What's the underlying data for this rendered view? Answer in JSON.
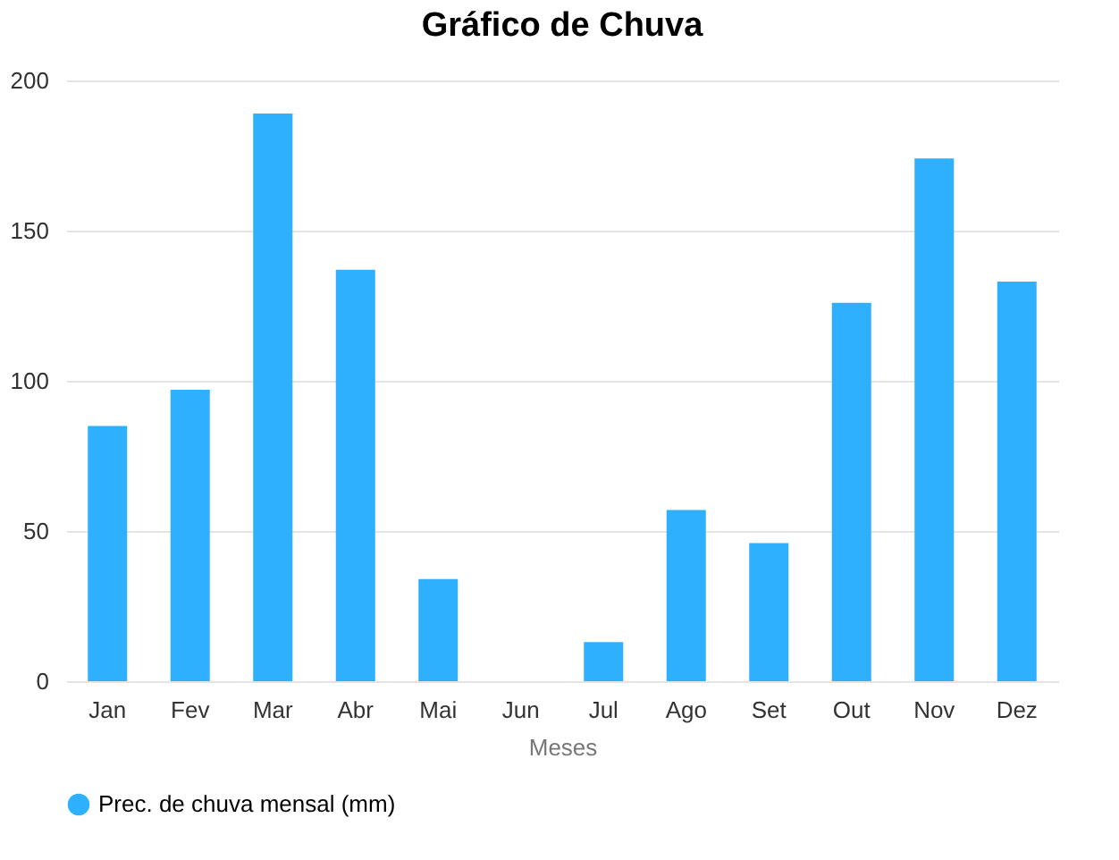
{
  "chart_data": {
    "type": "bar",
    "title": "Gráfico de Chuva",
    "xlabel": "Meses",
    "categories": [
      "Jan",
      "Fev",
      "Mar",
      "Abr",
      "Mai",
      "Jun",
      "Jul",
      "Ago",
      "Set",
      "Out",
      "Nov",
      "Dez"
    ],
    "series": [
      {
        "name": "Prec. de chuva mensal (mm)",
        "color": "#2eb0ff",
        "values": [
          85,
          97,
          189,
          137,
          34,
          0,
          13,
          57,
          46,
          126,
          174,
          133
        ]
      }
    ],
    "ylim": [
      0,
      200
    ],
    "yticks": [
      0,
      50,
      100,
      150,
      200
    ],
    "grid": "y",
    "legend": "bottom"
  }
}
